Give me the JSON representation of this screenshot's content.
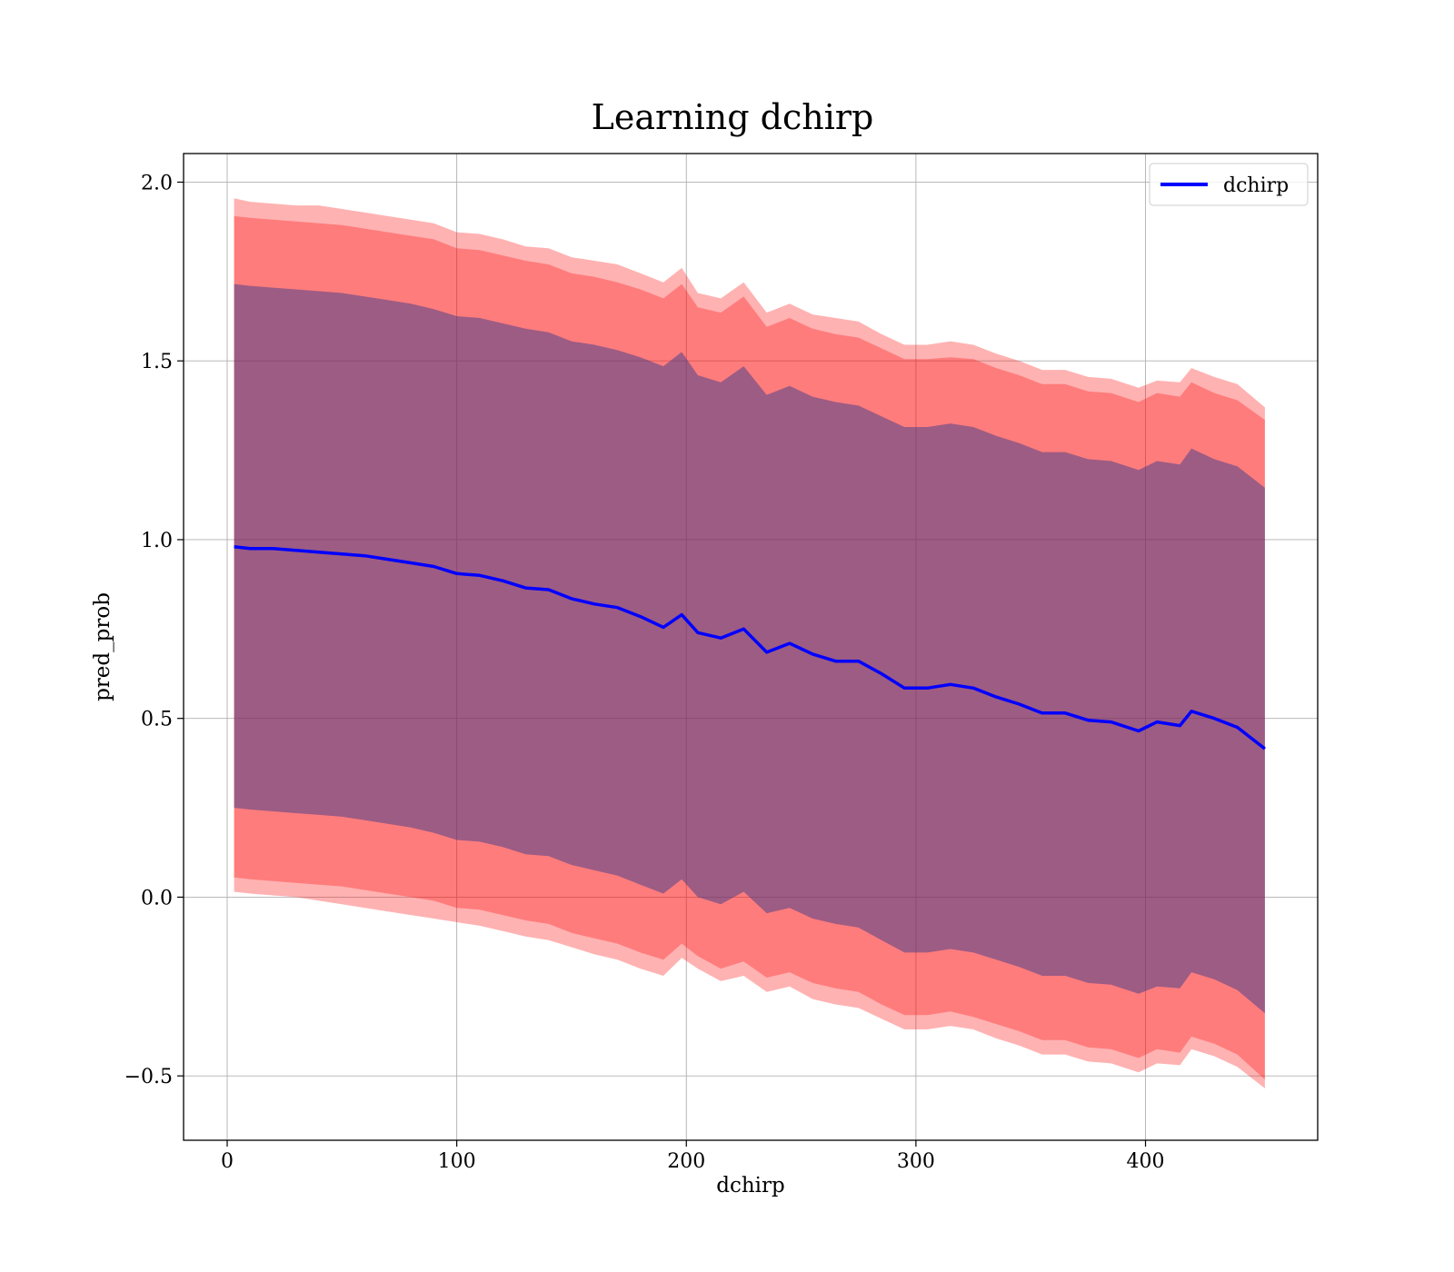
{
  "chart_data": {
    "type": "line",
    "title": "Learning dchirp",
    "xlabel": "dchirp",
    "ylabel": "pred_prob",
    "xlim": [
      -19,
      475
    ],
    "ylim": [
      -0.68,
      2.08
    ],
    "xticks": [
      0,
      100,
      200,
      300,
      400
    ],
    "yticks": [
      -0.5,
      0.0,
      0.5,
      1.0,
      1.5,
      2.0
    ],
    "xtick_labels": [
      "0",
      "100",
      "200",
      "300",
      "400"
    ],
    "ytick_labels": [
      "−0.5",
      "0.0",
      "0.5",
      "1.0",
      "1.5",
      "2.0"
    ],
    "grid": true,
    "legend": {
      "position": "top-right",
      "entries": [
        "dchirp"
      ]
    },
    "colors": {
      "line": "#0000ff",
      "band": "#ff0000",
      "inner_band": "#3c3c8c"
    },
    "x": [
      3,
      10,
      20,
      30,
      40,
      50,
      60,
      70,
      80,
      90,
      100,
      110,
      120,
      130,
      140,
      150,
      160,
      170,
      180,
      190,
      198,
      205,
      215,
      225,
      235,
      245,
      255,
      265,
      275,
      285,
      295,
      305,
      315,
      325,
      335,
      345,
      355,
      365,
      375,
      385,
      397,
      405,
      415,
      420,
      430,
      440,
      452
    ],
    "series": [
      {
        "name": "dchirp",
        "values": [
          0.98,
          0.975,
          0.975,
          0.97,
          0.965,
          0.96,
          0.955,
          0.945,
          0.935,
          0.925,
          0.905,
          0.9,
          0.885,
          0.865,
          0.86,
          0.835,
          0.82,
          0.81,
          0.785,
          0.755,
          0.79,
          0.74,
          0.725,
          0.75,
          0.685,
          0.71,
          0.68,
          0.66,
          0.66,
          0.625,
          0.585,
          0.585,
          0.595,
          0.585,
          0.56,
          0.54,
          0.515,
          0.515,
          0.495,
          0.49,
          0.465,
          0.49,
          0.48,
          0.52,
          0.5,
          0.475,
          0.415
        ]
      }
    ],
    "bands": [
      {
        "lower": [
          0.015,
          0.01,
          0.005,
          0.0,
          -0.01,
          -0.02,
          -0.03,
          -0.04,
          -0.05,
          -0.06,
          -0.07,
          -0.08,
          -0.095,
          -0.11,
          -0.12,
          -0.14,
          -0.16,
          -0.175,
          -0.2,
          -0.22,
          -0.17,
          -0.2,
          -0.235,
          -0.22,
          -0.265,
          -0.25,
          -0.285,
          -0.3,
          -0.31,
          -0.34,
          -0.37,
          -0.37,
          -0.36,
          -0.37,
          -0.395,
          -0.415,
          -0.44,
          -0.44,
          -0.46,
          -0.465,
          -0.49,
          -0.465,
          -0.47,
          -0.425,
          -0.445,
          -0.475,
          -0.535
        ],
        "upper": [
          1.955,
          1.945,
          1.94,
          1.935,
          1.935,
          1.925,
          1.915,
          1.905,
          1.895,
          1.885,
          1.86,
          1.855,
          1.84,
          1.82,
          1.815,
          1.79,
          1.78,
          1.77,
          1.745,
          1.72,
          1.76,
          1.69,
          1.675,
          1.72,
          1.635,
          1.66,
          1.63,
          1.62,
          1.61,
          1.575,
          1.545,
          1.545,
          1.555,
          1.545,
          1.52,
          1.5,
          1.475,
          1.475,
          1.455,
          1.45,
          1.425,
          1.445,
          1.44,
          1.48,
          1.455,
          1.435,
          1.37
        ]
      },
      {
        "lower": [
          0.055,
          0.05,
          0.045,
          0.04,
          0.035,
          0.03,
          0.02,
          0.01,
          0.0,
          -0.01,
          -0.03,
          -0.035,
          -0.05,
          -0.065,
          -0.075,
          -0.1,
          -0.115,
          -0.13,
          -0.155,
          -0.175,
          -0.13,
          -0.165,
          -0.2,
          -0.18,
          -0.225,
          -0.21,
          -0.24,
          -0.255,
          -0.265,
          -0.3,
          -0.33,
          -0.33,
          -0.32,
          -0.335,
          -0.355,
          -0.375,
          -0.4,
          -0.4,
          -0.42,
          -0.425,
          -0.45,
          -0.425,
          -0.435,
          -0.39,
          -0.41,
          -0.44,
          -0.51
        ],
        "upper": [
          1.905,
          1.9,
          1.895,
          1.89,
          1.885,
          1.88,
          1.87,
          1.86,
          1.85,
          1.84,
          1.815,
          1.81,
          1.795,
          1.78,
          1.77,
          1.745,
          1.735,
          1.72,
          1.7,
          1.675,
          1.715,
          1.65,
          1.635,
          1.68,
          1.595,
          1.62,
          1.59,
          1.575,
          1.565,
          1.535,
          1.505,
          1.505,
          1.51,
          1.505,
          1.48,
          1.46,
          1.435,
          1.435,
          1.415,
          1.41,
          1.385,
          1.41,
          1.4,
          1.44,
          1.41,
          1.39,
          1.335
        ]
      },
      {
        "lower": [
          0.25,
          0.245,
          0.24,
          0.235,
          0.23,
          0.225,
          0.215,
          0.205,
          0.195,
          0.18,
          0.16,
          0.155,
          0.14,
          0.12,
          0.115,
          0.09,
          0.075,
          0.06,
          0.035,
          0.01,
          0.05,
          0.0,
          -0.02,
          0.015,
          -0.045,
          -0.03,
          -0.06,
          -0.075,
          -0.085,
          -0.12,
          -0.155,
          -0.155,
          -0.145,
          -0.155,
          -0.175,
          -0.195,
          -0.22,
          -0.22,
          -0.24,
          -0.245,
          -0.27,
          -0.25,
          -0.255,
          -0.21,
          -0.23,
          -0.26,
          -0.325
        ],
        "upper": [
          1.715,
          1.71,
          1.705,
          1.7,
          1.695,
          1.69,
          1.68,
          1.67,
          1.66,
          1.645,
          1.625,
          1.62,
          1.605,
          1.59,
          1.58,
          1.555,
          1.545,
          1.53,
          1.51,
          1.485,
          1.525,
          1.46,
          1.44,
          1.485,
          1.405,
          1.43,
          1.4,
          1.385,
          1.375,
          1.345,
          1.315,
          1.315,
          1.325,
          1.315,
          1.29,
          1.27,
          1.245,
          1.245,
          1.225,
          1.22,
          1.195,
          1.22,
          1.21,
          1.255,
          1.225,
          1.205,
          1.145
        ]
      }
    ]
  }
}
